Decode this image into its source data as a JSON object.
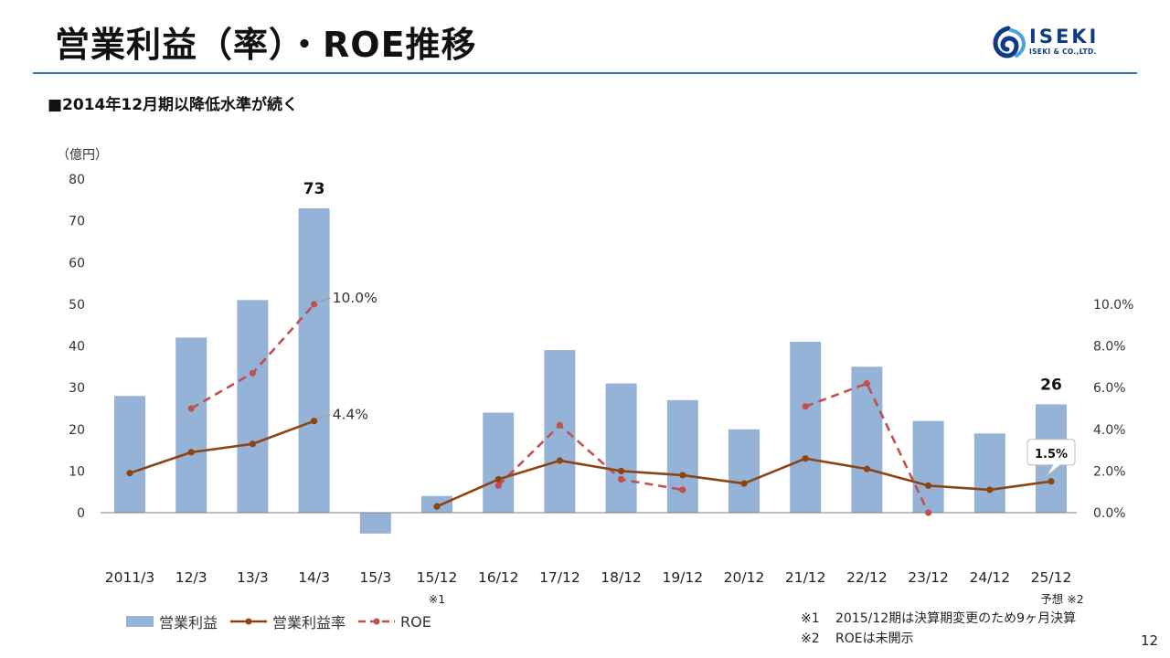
{
  "slide": {
    "title": "営業利益（率）・ROE推移",
    "subtitle": "■2014年12月期以降低水準が続く",
    "unit_label": "（億円）",
    "page_number": "12"
  },
  "logo": {
    "word": "ISEKI",
    "sub": "ISEKI & CO.,LTD.",
    "colors": {
      "primary": "#0d3b85",
      "secondary": "#4aa3df"
    }
  },
  "notes": [
    {
      "mark": "※1",
      "text": "2015/12期は決算期変更のため9ヶ月決算"
    },
    {
      "mark": "※2",
      "text": "ROEは未開示"
    }
  ],
  "chart_data": {
    "type": "bar",
    "categories": [
      "2011/3",
      "12/3",
      "13/3",
      "14/3",
      "15/3",
      "15/12",
      "16/12",
      "17/12",
      "18/12",
      "19/12",
      "20/12",
      "21/12",
      "22/12",
      "23/12",
      "24/12",
      "25/12"
    ],
    "category_notes": {
      "15/12": "※1",
      "25/12": "予想 ※2"
    },
    "y_left": {
      "ylim": [
        0,
        80
      ],
      "ticks": [
        "0",
        "10",
        "20",
        "30",
        "40",
        "50",
        "60",
        "70",
        "80"
      ]
    },
    "y_right": {
      "ylim": [
        0,
        10
      ],
      "ticks": [
        "0.0%",
        "2.0%",
        "4.0%",
        "6.0%",
        "8.0%",
        "10.0%"
      ]
    },
    "grid": false,
    "legend_position": "bottom-left",
    "series": [
      {
        "name": "営業利益",
        "type": "bar",
        "axis": "left",
        "color": "#95b3d7",
        "values": [
          28,
          42,
          51,
          73,
          -5,
          4,
          24,
          39,
          31,
          27,
          20,
          41,
          35,
          22,
          19,
          26
        ]
      },
      {
        "name": "営業利益率",
        "type": "line",
        "axis": "right",
        "color": "#8b4513",
        "dash": "solid",
        "values": [
          1.9,
          2.9,
          3.3,
          4.4,
          null,
          0.3,
          1.6,
          2.5,
          2.0,
          1.8,
          1.4,
          2.6,
          2.1,
          1.3,
          1.1,
          1.5
        ]
      },
      {
        "name": "ROE",
        "type": "line",
        "axis": "right",
        "color": "#c0504d",
        "dash": "dashed",
        "values": [
          null,
          5.0,
          6.7,
          10.0,
          null,
          null,
          1.3,
          4.2,
          1.6,
          1.1,
          null,
          5.1,
          6.2,
          0.0,
          null,
          null
        ]
      }
    ],
    "data_labels": [
      {
        "series": "営業利益",
        "category": "14/3",
        "text": "73",
        "style": "bold"
      },
      {
        "series": "営業利益",
        "category": "25/12",
        "text": "26",
        "style": "bold"
      },
      {
        "series": "ROE",
        "category": "14/3",
        "text": "10.0%",
        "style": "leader"
      },
      {
        "series": "営業利益率",
        "category": "14/3",
        "text": "4.4%",
        "style": "leader"
      },
      {
        "series": "営業利益率",
        "category": "25/12",
        "text": "1.5%",
        "style": "callout"
      }
    ]
  }
}
